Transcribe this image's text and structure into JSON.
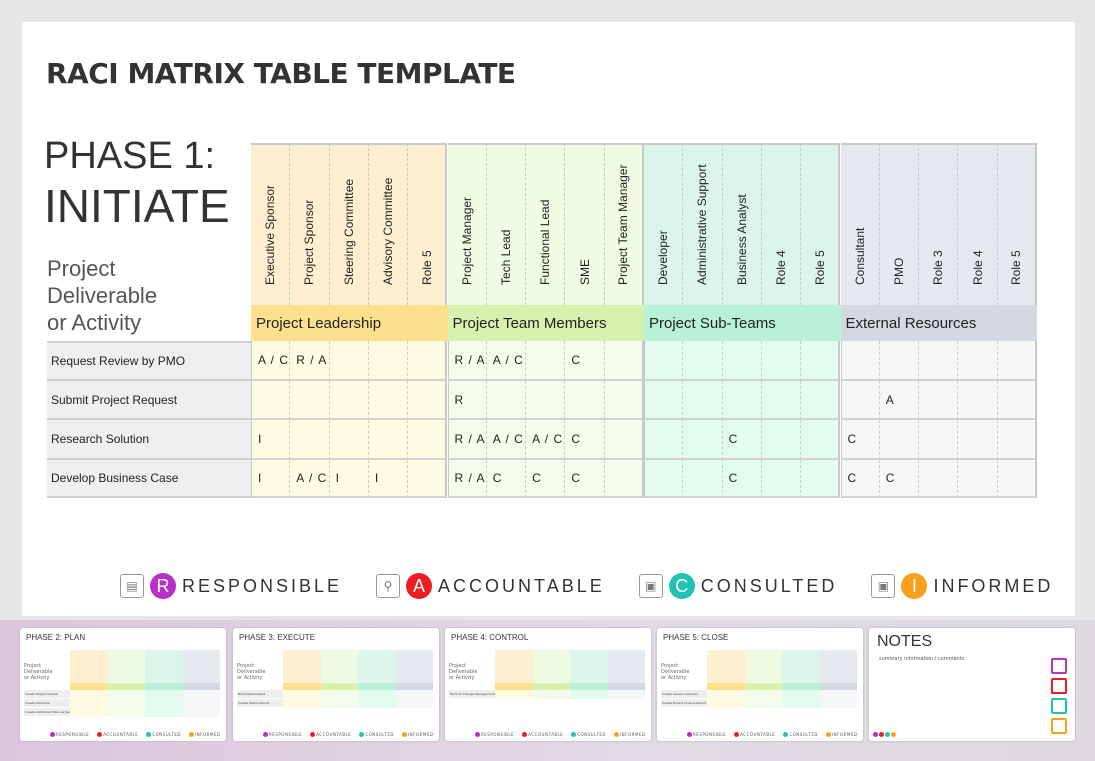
{
  "title": "RACI MATRIX TABLE TEMPLATE",
  "phase": {
    "line1": "PHASE 1:",
    "line2": "INITIATE"
  },
  "deliverable_label": [
    "Project",
    "Deliverable",
    "or Activity"
  ],
  "groups": [
    {
      "name": "Project Leadership",
      "head": "#fdefd0",
      "band": "#fde08e",
      "cell": "#fffbe2",
      "roles": [
        "Executive Sponsor",
        "Project Sponsor",
        "Steering Committee",
        "Advisory Committee",
        "Role 5"
      ]
    },
    {
      "name": "Project Team Members",
      "head": "#effbe2",
      "band": "#d8f1ae",
      "cell": "#f3fdea",
      "roles": [
        "Project Manager",
        "Tech Lead",
        "Functional Lead",
        "SME",
        "Project Team Manager"
      ]
    },
    {
      "name": "Project Sub-Teams",
      "head": "#dbf5ea",
      "band": "#b8f0d8",
      "cell": "#e2fcef",
      "roles": [
        "Developer",
        "Administrative Support",
        "Business Analyst",
        "Role 4",
        "Role 5"
      ]
    },
    {
      "name": "External Resources",
      "head": "#e6e9f0",
      "band": "#d3d8e2",
      "cell": "#f6f7f9",
      "roles": [
        "Consultant",
        "PMO",
        "Role 3",
        "Role 4",
        "Role 5"
      ]
    }
  ],
  "rows": [
    {
      "label": "Request Review by PMO",
      "values": [
        "A / C",
        "R / A",
        "",
        "",
        "",
        "R / A",
        "A / C",
        "",
        "C",
        "",
        "",
        "",
        "",
        "",
        "",
        "",
        "",
        "",
        "",
        ""
      ]
    },
    {
      "label": "Submit Project Request",
      "values": [
        "",
        "",
        "",
        "",
        "",
        "R",
        "",
        "",
        "",
        "",
        "",
        "",
        "",
        "",
        "",
        "",
        "A",
        "",
        "",
        ""
      ]
    },
    {
      "label": "Research Solution",
      "values": [
        "I",
        "",
        "",
        "",
        "",
        "R / A",
        "A / C",
        "A / C",
        "C",
        "",
        "",
        "",
        "C",
        "",
        "",
        "C",
        "",
        "",
        "",
        ""
      ]
    },
    {
      "label": "Develop Business Case",
      "values": [
        "I",
        "A / C",
        "I",
        "I",
        "",
        "R / A",
        "C",
        "C",
        "C",
        "",
        "",
        "",
        "C",
        "",
        "",
        "C",
        "C",
        "",
        "",
        ""
      ]
    }
  ],
  "legend": [
    {
      "letter": "R",
      "label": "RESPONSIBLE",
      "color": "#b92fc8",
      "icon": "document-check-icon"
    },
    {
      "letter": "A",
      "label": "ACCOUNTABLE",
      "color": "#ee1c24",
      "icon": "magnifier-person-icon"
    },
    {
      "letter": "C",
      "label": "CONSULTED",
      "color": "#22c2b4",
      "icon": "contact-card-download-icon"
    },
    {
      "letter": "I",
      "label": "INFORMED",
      "color": "#f8a01c",
      "icon": "contact-card-upload-icon"
    }
  ],
  "thumbnails": [
    {
      "title": "PHASE 2: PLAN",
      "rows": [
        "Create Project Charter",
        "Create Schedule",
        "Create Additional Plans as Required"
      ]
    },
    {
      "title": "PHASE 3: EXECUTE",
      "rows": [
        "Build Deliverables",
        "Create Status Report"
      ]
    },
    {
      "title": "PHASE 4: CONTROL",
      "rows": [
        "Perform Change Management"
      ]
    },
    {
      "title": "PHASE 5: CLOSE",
      "rows": [
        "Create Lessons Learned",
        "Create Project Closure Report"
      ]
    }
  ],
  "notes": {
    "title": "NOTES",
    "subtitle": "summary information / comments"
  }
}
